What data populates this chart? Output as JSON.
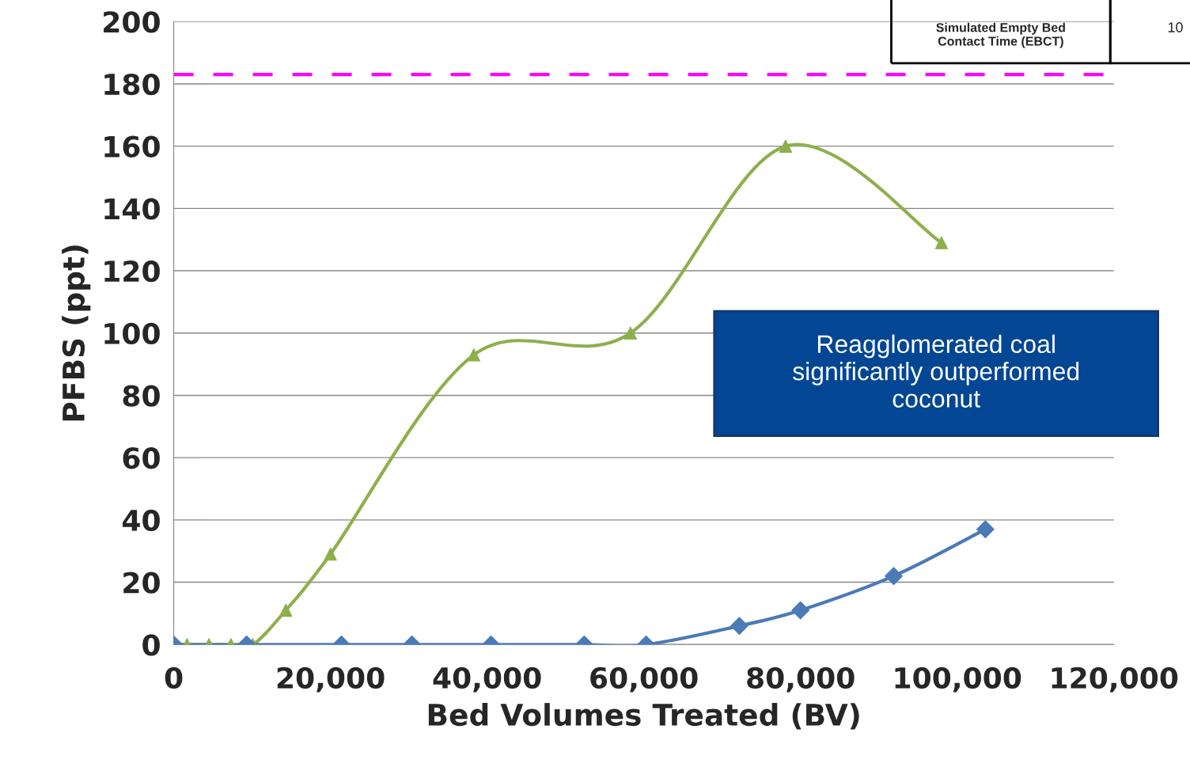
{
  "chart_data": {
    "type": "line",
    "xlabel": "Bed Volumes Treated (BV)",
    "ylabel": "PFBS (ppt)",
    "series": [
      {
        "color": "#8db04c",
        "marker": "triangle",
        "x": [
          0,
          1700,
          4500,
          7300,
          10100,
          14300,
          20000,
          38300,
          58300,
          78100,
          98000
        ],
        "values": [
          0,
          0,
          0,
          0,
          0,
          11,
          29,
          93,
          100,
          160,
          129
        ]
      },
      {
        "color": "#4a7ab8",
        "marker": "diamond",
        "x": [
          0,
          9300,
          21400,
          30400,
          40500,
          52400,
          60300,
          72200,
          80000,
          91900,
          103600
        ],
        "values": [
          0,
          0,
          0,
          0,
          0,
          0,
          0,
          6,
          11,
          22,
          37
        ]
      }
    ],
    "xlim": [
      0,
      120000
    ],
    "xticks": [
      {
        "value": 0,
        "label": "0"
      },
      {
        "value": 20000,
        "label": "20,000"
      },
      {
        "value": 40000,
        "label": "40,000"
      },
      {
        "value": 60000,
        "label": "60,000"
      },
      {
        "value": 80000,
        "label": "80,000"
      },
      {
        "value": 100000,
        "label": "100,000"
      },
      {
        "value": 120000,
        "label": "120,000"
      }
    ],
    "ylim": [
      0,
      200
    ],
    "yticks": [
      0,
      20,
      40,
      60,
      80,
      100,
      120,
      140,
      160,
      180,
      200
    ],
    "grid": "y",
    "legend": false,
    "ref_lines": [
      {
        "axis": "y",
        "value": 183,
        "color": "#ff00ff",
        "line_style": "dashed"
      }
    ],
    "annotations": [
      "Simulated Empty Bed\nContact Time (EBCT)",
      "10",
      "Reagglomerated coal\nsignificantly outperformed\ncoconut"
    ]
  }
}
